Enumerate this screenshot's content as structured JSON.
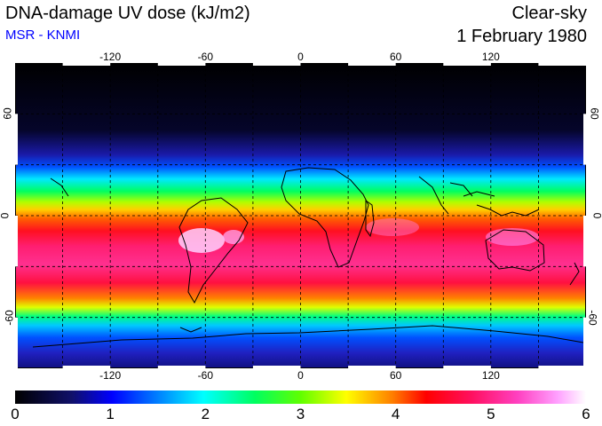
{
  "header": {
    "title": "DNA-damage UV dose (kJ/m2)",
    "subtitle": "MSR - KNMI",
    "condition": "Clear-sky",
    "date": "1 February 1980"
  },
  "map": {
    "lon_labels": [
      "-120",
      "-60",
      "0",
      "60",
      "120"
    ],
    "lon_values": [
      -120,
      -60,
      0,
      60,
      120
    ],
    "lat_labels": [
      "60",
      "0",
      "-60"
    ],
    "lat_values": [
      60,
      0,
      -60
    ],
    "lon_range": [
      -180,
      180
    ],
    "lat_range": [
      -90,
      90
    ]
  },
  "colorbar": {
    "ticks": [
      "0",
      "1",
      "2",
      "3",
      "4",
      "5",
      "6"
    ],
    "range": [
      0,
      6
    ],
    "colors": [
      "#000000",
      "#1a1aa0",
      "#0040ff",
      "#00ffff",
      "#00ff40",
      "#ffff00",
      "#ff8000",
      "#ff0000",
      "#ff2090",
      "#ff60ff",
      "#ffffff"
    ]
  }
}
